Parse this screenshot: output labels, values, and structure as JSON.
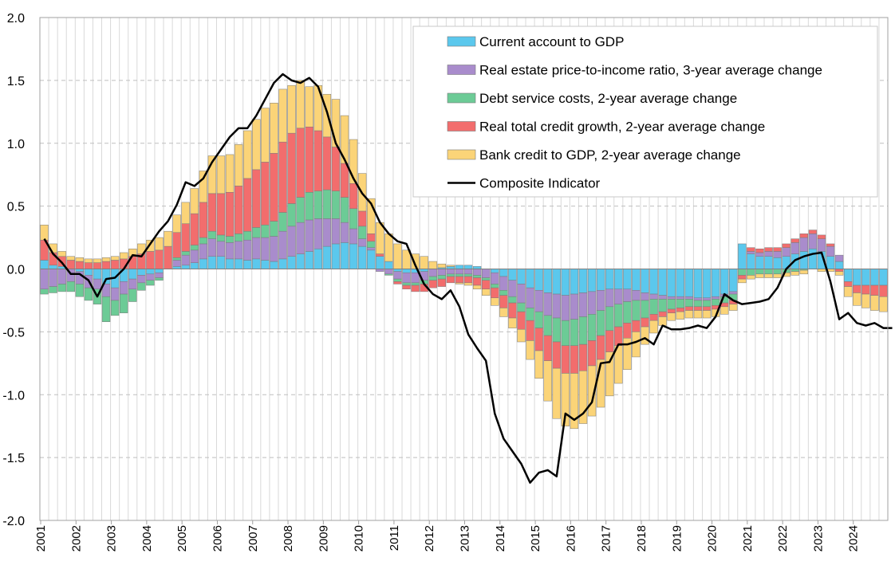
{
  "chart_data": {
    "type": "bar",
    "stacked": true,
    "title": "",
    "xlabel": "",
    "ylabel": "",
    "ylim": [
      -2.0,
      2.0
    ],
    "yticks": [
      "2.0",
      "1.5",
      "1.0",
      "0.5",
      "0.0",
      "-0.5",
      "-1.0",
      "-1.5",
      "-2.0"
    ],
    "x_range": [
      2001.0,
      2024.75
    ],
    "xticks": [
      "2001",
      "2002",
      "2003",
      "2004",
      "2005",
      "2006",
      "2007",
      "2008",
      "2009",
      "2010",
      "2011",
      "2012",
      "2013",
      "2014",
      "2015",
      "2016",
      "2017",
      "2018",
      "2019",
      "2020",
      "2021",
      "2022",
      "2023",
      "2024"
    ],
    "grid": "horizontal dashed + vertical at each quarter",
    "legend_position": "top-right",
    "frequency": "quarterly, 2001Q1-2024Q4",
    "series": [
      {
        "name": "Current account to GDP",
        "color": "#5bc8ed",
        "kind": "bar",
        "values": [
          0.07,
          0.03,
          0.02,
          0.0,
          -0.02,
          -0.05,
          -0.08,
          -0.12,
          -0.15,
          -0.1,
          -0.08,
          -0.05,
          -0.04,
          -0.03,
          0.0,
          0.02,
          0.03,
          0.05,
          0.08,
          0.1,
          0.1,
          0.08,
          0.08,
          0.07,
          0.08,
          0.07,
          0.06,
          0.08,
          0.1,
          0.12,
          0.14,
          0.16,
          0.18,
          0.2,
          0.21,
          0.2,
          0.18,
          0.15,
          0.1,
          0.06,
          -0.02,
          -0.03,
          -0.03,
          -0.02,
          0.0,
          0.01,
          0.02,
          0.03,
          0.03,
          0.02,
          0.0,
          -0.03,
          -0.06,
          -0.09,
          -0.12,
          -0.15,
          -0.17,
          -0.19,
          -0.2,
          -0.21,
          -0.2,
          -0.19,
          -0.18,
          -0.17,
          -0.16,
          -0.16,
          -0.16,
          -0.17,
          -0.19,
          -0.2,
          -0.21,
          -0.22,
          -0.22,
          -0.22,
          -0.23,
          -0.23,
          -0.22,
          -0.2,
          -0.18,
          0.2,
          0.12,
          0.1,
          0.1,
          0.09,
          0.1,
          0.12,
          0.14,
          0.16,
          0.14,
          0.1,
          0.06,
          -0.1,
          -0.13,
          -0.13,
          -0.13,
          -0.13
        ]
      },
      {
        "name": "Real estate price-to-income ratio, 3-year average change",
        "color": "#a98ccc",
        "kind": "bar",
        "values": [
          -0.16,
          -0.14,
          -0.12,
          -0.1,
          -0.1,
          -0.1,
          -0.08,
          -0.1,
          -0.1,
          -0.1,
          -0.08,
          -0.06,
          -0.05,
          -0.04,
          0.0,
          0.05,
          0.08,
          0.1,
          0.12,
          0.14,
          0.12,
          0.13,
          0.14,
          0.16,
          0.17,
          0.18,
          0.2,
          0.22,
          0.24,
          0.25,
          0.25,
          0.24,
          0.22,
          0.2,
          0.16,
          0.12,
          0.06,
          0.02,
          -0.02,
          -0.04,
          -0.06,
          -0.08,
          -0.08,
          -0.07,
          -0.06,
          -0.05,
          -0.04,
          -0.04,
          -0.04,
          -0.05,
          -0.07,
          -0.09,
          -0.11,
          -0.13,
          -0.15,
          -0.16,
          -0.17,
          -0.18,
          -0.19,
          -0.2,
          -0.2,
          -0.19,
          -0.18,
          -0.16,
          -0.14,
          -0.12,
          -0.1,
          -0.08,
          -0.06,
          -0.04,
          -0.03,
          -0.02,
          -0.02,
          -0.02,
          -0.02,
          -0.02,
          -0.02,
          -0.02,
          -0.02,
          0.0,
          0.02,
          0.03,
          0.04,
          0.05,
          0.07,
          0.09,
          0.11,
          0.12,
          0.1,
          0.08,
          0.05,
          0.0,
          0.0,
          0.0,
          0.0,
          0.0
        ]
      },
      {
        "name": "Debt service costs, 2-year average change",
        "color": "#6ccb96",
        "kind": "bar",
        "values": [
          -0.04,
          -0.05,
          -0.06,
          -0.08,
          -0.1,
          -0.1,
          -0.12,
          -0.2,
          -0.12,
          -0.15,
          -0.1,
          -0.06,
          -0.04,
          -0.02,
          0.0,
          0.02,
          0.03,
          0.04,
          0.05,
          0.06,
          0.05,
          0.05,
          0.06,
          0.07,
          0.08,
          0.1,
          0.12,
          0.15,
          0.18,
          0.2,
          0.22,
          0.22,
          0.23,
          0.22,
          0.2,
          0.16,
          0.1,
          0.05,
          0.0,
          -0.01,
          -0.02,
          -0.02,
          -0.02,
          -0.03,
          -0.03,
          -0.03,
          -0.02,
          -0.02,
          -0.02,
          -0.02,
          -0.02,
          -0.03,
          -0.04,
          -0.05,
          -0.07,
          -0.1,
          -0.13,
          -0.16,
          -0.19,
          -0.2,
          -0.21,
          -0.22,
          -0.21,
          -0.2,
          -0.19,
          -0.18,
          -0.17,
          -0.16,
          -0.14,
          -0.12,
          -0.1,
          -0.08,
          -0.07,
          -0.06,
          -0.05,
          -0.05,
          -0.05,
          -0.05,
          -0.05,
          -0.05,
          -0.05,
          -0.04,
          -0.04,
          -0.04,
          -0.03,
          -0.02,
          -0.01,
          0.0,
          0.0,
          0.0,
          0.0,
          0.0,
          0.0,
          0.0,
          0.0,
          0.0
        ]
      },
      {
        "name": "Real total credit growth, 2-year average change",
        "color": "#f26d6d",
        "kind": "bar",
        "values": [
          0.16,
          0.1,
          0.08,
          0.07,
          0.06,
          0.05,
          0.05,
          0.06,
          0.07,
          0.08,
          0.1,
          0.12,
          0.14,
          0.15,
          0.18,
          0.2,
          0.22,
          0.25,
          0.28,
          0.3,
          0.33,
          0.35,
          0.38,
          0.42,
          0.46,
          0.5,
          0.54,
          0.56,
          0.56,
          0.55,
          0.52,
          0.48,
          0.42,
          0.35,
          0.27,
          0.2,
          0.12,
          0.06,
          0.02,
          0.0,
          -0.02,
          -0.03,
          -0.05,
          -0.06,
          -0.06,
          -0.06,
          -0.05,
          -0.05,
          -0.05,
          -0.06,
          -0.07,
          -0.08,
          -0.1,
          -0.12,
          -0.14,
          -0.16,
          -0.18,
          -0.2,
          -0.21,
          -0.22,
          -0.22,
          -0.21,
          -0.2,
          -0.19,
          -0.17,
          -0.15,
          -0.12,
          -0.09,
          -0.07,
          -0.05,
          -0.04,
          -0.03,
          -0.03,
          -0.03,
          -0.03,
          -0.03,
          -0.03,
          -0.03,
          -0.03,
          -0.03,
          0.03,
          0.03,
          0.03,
          0.03,
          0.03,
          0.03,
          0.03,
          0.03,
          0.03,
          0.02,
          -0.02,
          -0.04,
          -0.06,
          -0.07,
          -0.08,
          -0.09
        ]
      },
      {
        "name": "Bank credit to GDP, 2-year average change",
        "color": "#fbd478",
        "kind": "bar",
        "values": [
          0.12,
          0.07,
          0.04,
          0.03,
          0.03,
          0.03,
          0.03,
          0.03,
          0.03,
          0.05,
          0.06,
          0.08,
          0.09,
          0.1,
          0.12,
          0.14,
          0.17,
          0.2,
          0.25,
          0.3,
          0.3,
          0.3,
          0.33,
          0.38,
          0.4,
          0.43,
          0.4,
          0.42,
          0.38,
          0.38,
          0.32,
          0.36,
          0.34,
          0.38,
          0.38,
          0.35,
          0.3,
          0.28,
          0.25,
          0.22,
          0.2,
          0.15,
          0.12,
          0.1,
          0.06,
          0.03,
          0.01,
          -0.01,
          -0.02,
          -0.03,
          -0.05,
          -0.06,
          -0.07,
          -0.08,
          -0.1,
          -0.15,
          -0.22,
          -0.32,
          -0.4,
          -0.42,
          -0.44,
          -0.42,
          -0.4,
          -0.38,
          -0.35,
          -0.3,
          -0.25,
          -0.2,
          -0.14,
          -0.1,
          -0.07,
          -0.06,
          -0.06,
          -0.06,
          -0.06,
          -0.06,
          -0.06,
          -0.06,
          -0.05,
          -0.03,
          -0.03,
          -0.03,
          -0.03,
          -0.03,
          -0.03,
          -0.03,
          -0.03,
          0.0,
          -0.02,
          -0.02,
          -0.03,
          -0.08,
          -0.1,
          -0.11,
          -0.12,
          -0.12
        ]
      },
      {
        "name": "Composite Indicator",
        "color": "#000000",
        "kind": "line",
        "values": [
          0.24,
          0.12,
          0.05,
          -0.04,
          -0.04,
          -0.09,
          -0.22,
          -0.08,
          -0.07,
          0.0,
          0.11,
          0.1,
          0.2,
          0.3,
          0.38,
          0.51,
          0.69,
          0.66,
          0.72,
          0.85,
          0.95,
          1.05,
          1.12,
          1.12,
          1.22,
          1.35,
          1.48,
          1.55,
          1.5,
          1.48,
          1.52,
          1.45,
          1.25,
          1.0,
          0.87,
          0.72,
          0.6,
          0.52,
          0.37,
          0.28,
          0.22,
          0.2,
          0.03,
          -0.12,
          -0.2,
          -0.24,
          -0.17,
          -0.3,
          -0.52,
          -0.63,
          -0.73,
          -1.15,
          -1.35,
          -1.45,
          -1.55,
          -1.7,
          -1.62,
          -1.6,
          -1.65,
          -1.15,
          -1.2,
          -1.15,
          -1.06,
          -0.75,
          -0.74,
          -0.6,
          -0.6,
          -0.58,
          -0.55,
          -0.6,
          -0.45,
          -0.48,
          -0.48,
          -0.47,
          -0.45,
          -0.47,
          -0.38,
          -0.2,
          -0.25,
          -0.28,
          -0.27,
          -0.26,
          -0.24,
          -0.15,
          0.0,
          0.07,
          0.1,
          0.12,
          0.13,
          -0.1,
          -0.4,
          -0.35,
          -0.43,
          -0.45,
          -0.43,
          -0.47,
          -0.47
        ]
      }
    ]
  }
}
